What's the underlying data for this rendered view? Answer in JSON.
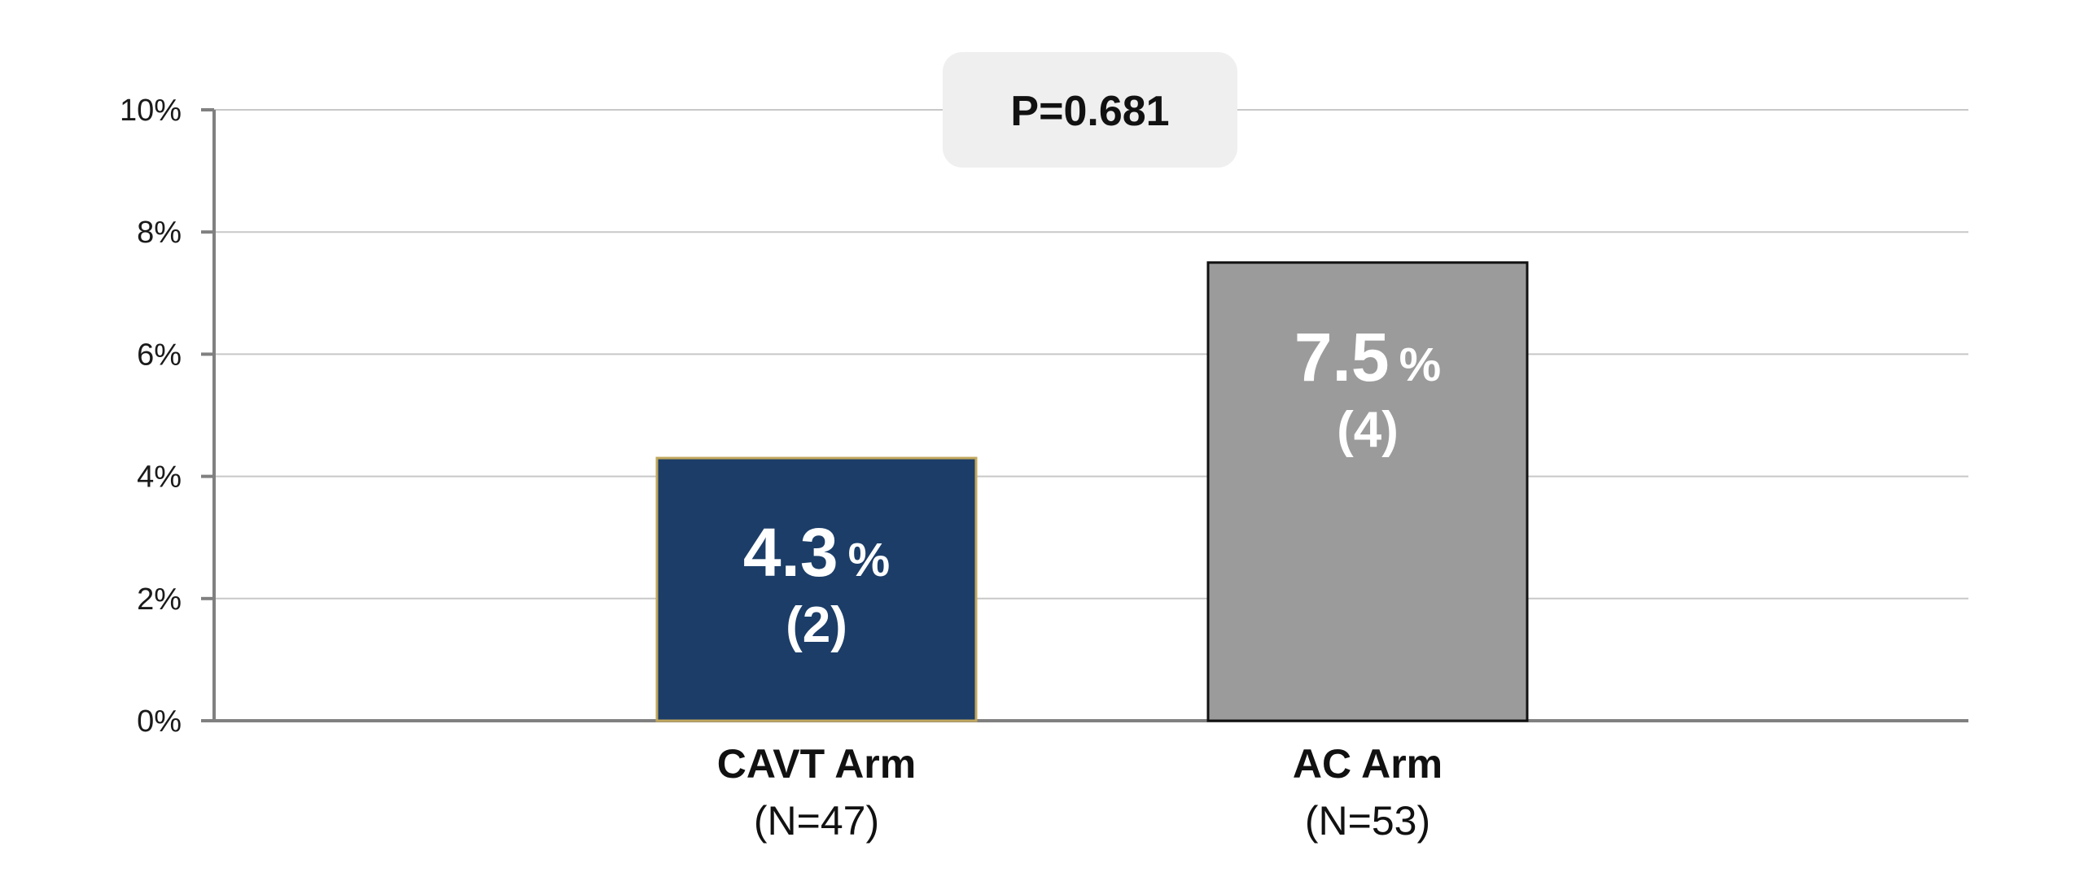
{
  "chart_data": {
    "type": "bar",
    "categories": [
      "CAVT Arm",
      "AC Arm"
    ],
    "category_n": [
      "(N=47)",
      "(N=53)"
    ],
    "values": [
      4.3,
      7.5
    ],
    "value_labels": [
      "4.3",
      "7.5"
    ],
    "value_suffix": "%",
    "counts": [
      "(2)",
      "(4)"
    ],
    "bar_colors": [
      "#1b3d68",
      "#9b9b9b"
    ],
    "bar_border_colors": [
      "#c2a85e",
      "#111111"
    ],
    "ylim": [
      0,
      10
    ],
    "yticks": [
      0,
      2,
      4,
      6,
      8,
      10
    ],
    "ytick_labels": [
      "0%",
      "2%",
      "4%",
      "6%",
      "8%",
      "10%"
    ],
    "annotation": "P=0.681",
    "grid": true
  }
}
